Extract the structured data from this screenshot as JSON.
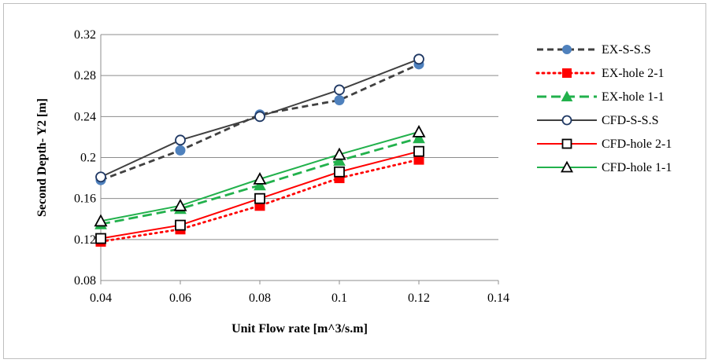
{
  "chart_data": {
    "type": "line",
    "title": "",
    "xlabel": "Unit Flow rate [m^3/s.m]",
    "ylabel": "Second  Depth- Y2 [m]",
    "xlim": [
      0.04,
      0.14
    ],
    "ylim": [
      0.08,
      0.32
    ],
    "x_ticks": [
      "0.04",
      "0.06",
      "0.08",
      "0.1",
      "0.12",
      "0.14"
    ],
    "y_ticks": [
      "0.08",
      "0.12",
      "0.16",
      "0.2",
      "0.24",
      "0.28",
      "0.32"
    ],
    "grid": "horizontal",
    "legend_position": "right",
    "x": [
      0.04,
      0.06,
      0.08,
      0.1,
      0.12
    ],
    "series": [
      {
        "name": "EX-S-S.S",
        "values": [
          0.178,
          0.207,
          0.242,
          0.256,
          0.291
        ],
        "color": "#404040",
        "marker_color": "#4f81bd",
        "dash": "dashed",
        "marker": "circle-filled"
      },
      {
        "name": "EX-hole 2-1",
        "values": [
          0.118,
          0.13,
          0.153,
          0.18,
          0.198
        ],
        "color": "#ff0000",
        "marker_color": "#ff0000",
        "dash": "dotted",
        "marker": "square-filled"
      },
      {
        "name": "EX-hole 1-1",
        "values": [
          0.135,
          0.15,
          0.173,
          0.197,
          0.219
        ],
        "color": "#22b14c",
        "marker_color": "#22b14c",
        "dash": "longdash",
        "marker": "triangle-filled"
      },
      {
        "name": "CFD-S-S.S",
        "values": [
          0.181,
          0.217,
          0.24,
          0.266,
          0.296
        ],
        "color": "#404040",
        "marker_color": "#1f3864",
        "dash": "solid",
        "marker": "circle-open"
      },
      {
        "name": "CFD-hole 2-1",
        "values": [
          0.121,
          0.134,
          0.16,
          0.186,
          0.206
        ],
        "color": "#ff0000",
        "marker_color": "#000000",
        "dash": "solid",
        "marker": "square-open"
      },
      {
        "name": "CFD-hole 1-1",
        "values": [
          0.138,
          0.153,
          0.179,
          0.203,
          0.225
        ],
        "color": "#22b14c",
        "marker_color": "#000000",
        "dash": "solid",
        "marker": "triangle-open"
      }
    ]
  }
}
